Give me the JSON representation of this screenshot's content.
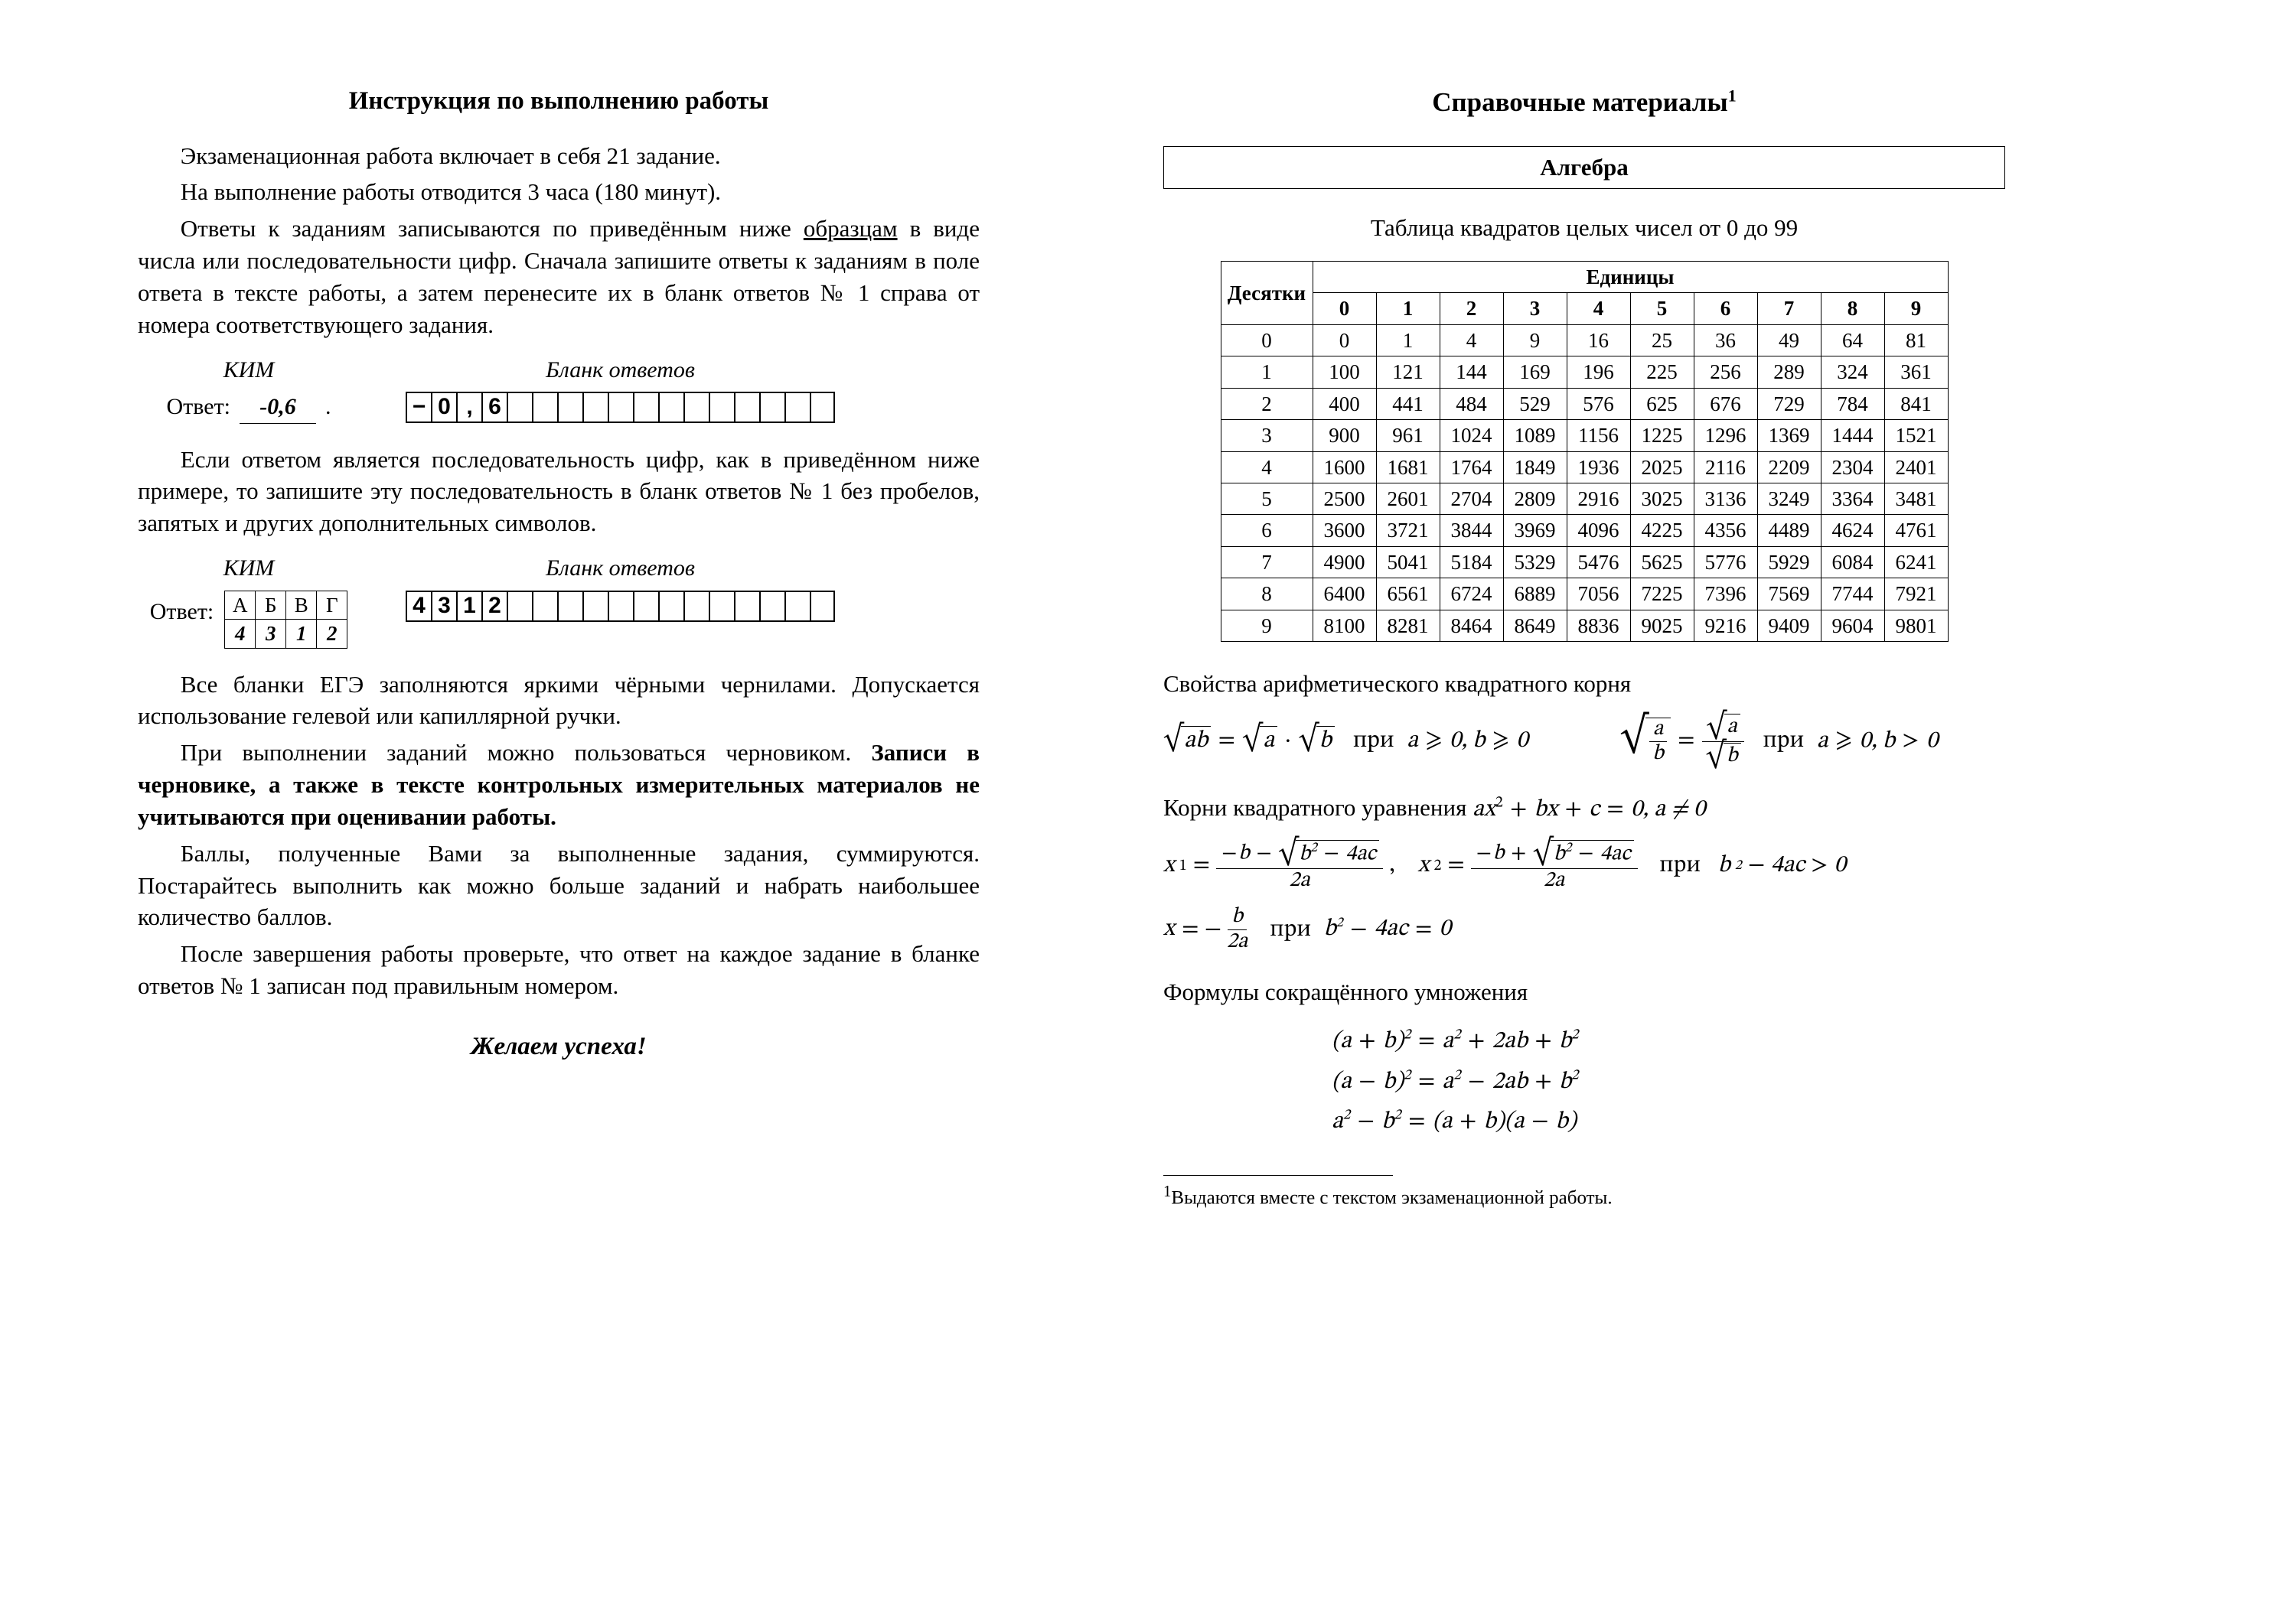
{
  "left": {
    "heading": "Инструкция по выполнению работы",
    "p1": "Экзаменационная работа включает в себя 21 задание.",
    "p2": "На выполнение работы отводится 3 часа (180 минут).",
    "p3a": "Ответы к заданиям записываются по приведённым ниже ",
    "p3u": "образцам",
    "p3b": " в виде числа или последовательности цифр. Сначала запишите ответы к заданиям в поле ответа в тексте работы, а затем перенесите их в бланк ответов № 1 справа от номера соответствующего задания.",
    "kim": "КИМ",
    "blank": "Бланк ответов",
    "answer": "Ответ:",
    "ans_val": "-0,6",
    "dot": ".",
    "boxes1": [
      "−",
      "0",
      ",",
      "6",
      "",
      "",
      "",
      "",
      "",
      "",
      "",
      "",
      "",
      "",
      "",
      "",
      ""
    ],
    "p4": "Если ответом является последовательность цифр, как в приведённом ниже примере, то запишите эту последовательность в бланк ответов № 1 без пробелов, запятых и других дополнительных символов.",
    "abcd_head": [
      "А",
      "Б",
      "В",
      "Г"
    ],
    "abcd_vals": [
      "4",
      "3",
      "1",
      "2"
    ],
    "boxes2": [
      "4",
      "3",
      "1",
      "2",
      "",
      "",
      "",
      "",
      "",
      "",
      "",
      "",
      "",
      "",
      "",
      "",
      ""
    ],
    "p5": "Все бланки ЕГЭ заполняются яркими чёрными чернилами. Допускается использование гелевой или капиллярной ручки.",
    "p6a": "При выполнении заданий можно пользоваться черновиком. ",
    "p6b": "Записи в черновике, а также в тексте контрольных измерительных материалов не учитываются при оценивании работы.",
    "p7": "Баллы, полученные Вами за выполненные задания, суммируются. Постарайтесь выполнить как можно больше заданий и набрать наибольшее количество баллов.",
    "p8": "После завершения работы проверьте, что ответ на каждое задание в бланке ответов № 1 записан под правильным номером.",
    "wish": "Желаем успеха!"
  },
  "right": {
    "heading": "Справочные материалы",
    "algebra": "Алгебра",
    "table_caption": "Таблица квадратов целых чисел от 0 до 99",
    "tens": "Десятки",
    "units": "Единицы",
    "cols": [
      "0",
      "1",
      "2",
      "3",
      "4",
      "5",
      "6",
      "7",
      "8",
      "9"
    ],
    "rows": [
      [
        "0",
        "0",
        "1",
        "4",
        "9",
        "16",
        "25",
        "36",
        "49",
        "64",
        "81"
      ],
      [
        "1",
        "100",
        "121",
        "144",
        "169",
        "196",
        "225",
        "256",
        "289",
        "324",
        "361"
      ],
      [
        "2",
        "400",
        "441",
        "484",
        "529",
        "576",
        "625",
        "676",
        "729",
        "784",
        "841"
      ],
      [
        "3",
        "900",
        "961",
        "1024",
        "1089",
        "1156",
        "1225",
        "1296",
        "1369",
        "1444",
        "1521"
      ],
      [
        "4",
        "1600",
        "1681",
        "1764",
        "1849",
        "1936",
        "2025",
        "2116",
        "2209",
        "2304",
        "2401"
      ],
      [
        "5",
        "2500",
        "2601",
        "2704",
        "2809",
        "2916",
        "3025",
        "3136",
        "3249",
        "3364",
        "3481"
      ],
      [
        "6",
        "3600",
        "3721",
        "3844",
        "3969",
        "4096",
        "4225",
        "4356",
        "4489",
        "4624",
        "4761"
      ],
      [
        "7",
        "4900",
        "5041",
        "5184",
        "5329",
        "5476",
        "5625",
        "5776",
        "5929",
        "6084",
        "6241"
      ],
      [
        "8",
        "6400",
        "6561",
        "6724",
        "6889",
        "7056",
        "7225",
        "7396",
        "7569",
        "7744",
        "7921"
      ],
      [
        "9",
        "8100",
        "8281",
        "8464",
        "8649",
        "8836",
        "9025",
        "9216",
        "9409",
        "9604",
        "9801"
      ]
    ],
    "sqrt_heading": "Свойства арифметического квадратного корня",
    "quad_heading_a": "Корни квадратного уравнения ",
    "quad_heading_b": ",  a ≠ 0",
    "mult_heading": "Формулы сокращённого умножения",
    "footnote": "Выдаются вместе с текстом экзаменационной работы."
  }
}
